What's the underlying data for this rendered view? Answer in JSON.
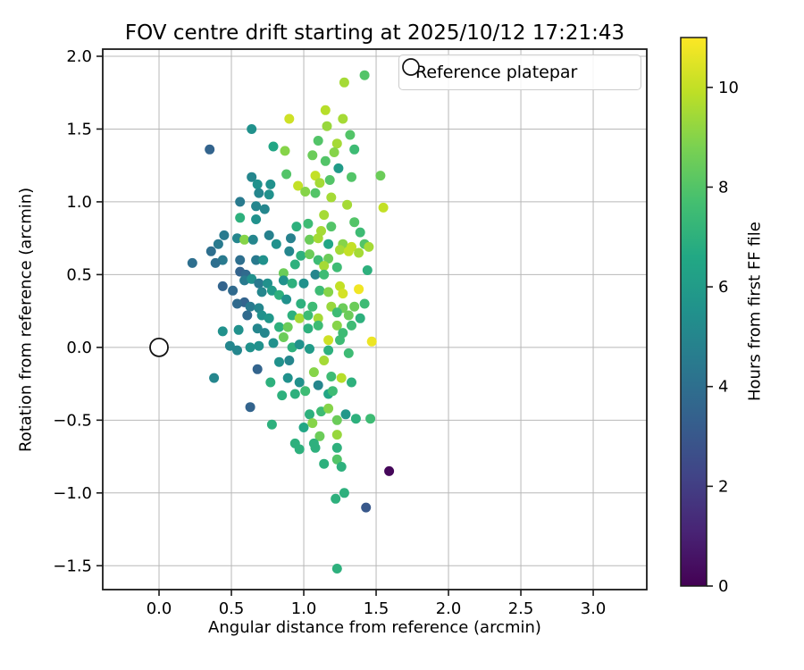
{
  "chart_data": {
    "type": "scatter",
    "title": "FOV centre drift starting at 2025/10/12 17:21:43",
    "xlabel": "Angular distance from reference (arcmin)",
    "ylabel": "Rotation from reference (arcmin)",
    "xlim": [
      -0.389,
      3.37
    ],
    "ylim": [
      -1.664,
      2.049
    ],
    "xticks": [
      0.0,
      0.5,
      1.0,
      1.5,
      2.0,
      2.5,
      3.0
    ],
    "xtick_labels": [
      "0.0",
      "0.5",
      "1.0",
      "1.5",
      "2.0",
      "2.5",
      "3.0"
    ],
    "yticks": [
      2.0,
      1.5,
      1.0,
      0.5,
      0.0,
      -0.5,
      -1.0,
      -1.5
    ],
    "ytick_labels": [
      "2.0",
      "1.5",
      "1.0",
      "0.5",
      "0.0",
      "−0.5",
      "−1.0",
      "−1.5"
    ],
    "grid": true,
    "legend": {
      "label": "Reference platepar",
      "position": "upper right",
      "marker": "open-circle"
    },
    "reference_point": {
      "x": 0.0,
      "y": 0.0
    },
    "colorbar": {
      "label": "Hours from first FF file",
      "min": 0,
      "max": 11,
      "ticks": [
        0,
        2,
        4,
        6,
        8,
        10
      ],
      "tick_labels": [
        "0",
        "2",
        "4",
        "6",
        "8",
        "10"
      ],
      "colormap": "viridis",
      "stops": [
        [
          0,
          "#440154"
        ],
        [
          0.1,
          "#482475"
        ],
        [
          0.2,
          "#414487"
        ],
        [
          0.3,
          "#355f8d"
        ],
        [
          0.4,
          "#2a788e"
        ],
        [
          0.5,
          "#21918c"
        ],
        [
          0.6,
          "#22a884"
        ],
        [
          0.7,
          "#44bf70"
        ],
        [
          0.8,
          "#7ad151"
        ],
        [
          0.9,
          "#bddf26"
        ],
        [
          1,
          "#fde725"
        ]
      ]
    },
    "series_note": "points are [angular_distance_arcmin, rotation_arcmin, hours_from_first_FF_file]",
    "points": [
      [
        1.28,
        1.82,
        9.5
      ],
      [
        1.42,
        1.87,
        8.0
      ],
      [
        1.15,
        1.63,
        9.8
      ],
      [
        1.16,
        1.52,
        9.3
      ],
      [
        0.9,
        1.57,
        10.2
      ],
      [
        0.64,
        1.5,
        5.5
      ],
      [
        0.35,
        1.36,
        3.5
      ],
      [
        1.27,
        1.57,
        9.5
      ],
      [
        1.1,
        1.42,
        8.0
      ],
      [
        1.23,
        1.4,
        9.5
      ],
      [
        1.32,
        1.46,
        8.0
      ],
      [
        1.35,
        1.36,
        7.5
      ],
      [
        1.21,
        1.34,
        9.0
      ],
      [
        0.79,
        1.38,
        6.5
      ],
      [
        0.87,
        1.35,
        9.0
      ],
      [
        1.06,
        1.32,
        8.5
      ],
      [
        1.15,
        1.28,
        8.0
      ],
      [
        1.24,
        1.23,
        6.0
      ],
      [
        0.64,
        1.17,
        5.0
      ],
      [
        0.68,
        1.12,
        5.5
      ],
      [
        0.77,
        1.12,
        5.5
      ],
      [
        0.88,
        1.19,
        8.0
      ],
      [
        1.08,
        1.18,
        10.0
      ],
      [
        1.11,
        1.13,
        9.5
      ],
      [
        1.18,
        1.15,
        8.0
      ],
      [
        1.33,
        1.17,
        8.0
      ],
      [
        1.53,
        1.18,
        8.5
      ],
      [
        0.96,
        1.11,
        10.0
      ],
      [
        0.69,
        1.06,
        5.0
      ],
      [
        0.76,
        1.05,
        5.5
      ],
      [
        1.01,
        1.07,
        9.0
      ],
      [
        1.08,
        1.06,
        8.0
      ],
      [
        1.19,
        1.03,
        9.5
      ],
      [
        1.3,
        0.98,
        9.5
      ],
      [
        1.14,
        0.91,
        9.5
      ],
      [
        1.55,
        0.96,
        10.0
      ],
      [
        0.56,
        1.0,
        4.5
      ],
      [
        0.67,
        0.97,
        5.0
      ],
      [
        0.73,
        0.95,
        5.0
      ],
      [
        0.56,
        0.89,
        7.0
      ],
      [
        0.67,
        0.88,
        5.5
      ],
      [
        0.95,
        0.83,
        7.0
      ],
      [
        1.03,
        0.85,
        7.5
      ],
      [
        1.12,
        0.8,
        9.5
      ],
      [
        1.19,
        0.83,
        8.0
      ],
      [
        1.35,
        0.86,
        8.0
      ],
      [
        1.39,
        0.79,
        7.5
      ],
      [
        0.45,
        0.77,
        4.5
      ],
      [
        0.54,
        0.75,
        5.0
      ],
      [
        0.59,
        0.74,
        9.0
      ],
      [
        0.65,
        0.74,
        5.0
      ],
      [
        0.76,
        0.77,
        4.8
      ],
      [
        0.81,
        0.71,
        5.5
      ],
      [
        0.91,
        0.75,
        4.8
      ],
      [
        1.04,
        0.74,
        8.5
      ],
      [
        1.1,
        0.75,
        9.5
      ],
      [
        1.17,
        0.71,
        6.5
      ],
      [
        1.27,
        0.71,
        9.0
      ],
      [
        1.33,
        0.69,
        10.0
      ],
      [
        1.42,
        0.71,
        8.0
      ],
      [
        1.45,
        0.69,
        9.5
      ],
      [
        0.41,
        0.71,
        4.5
      ],
      [
        0.36,
        0.66,
        4.0
      ],
      [
        0.44,
        0.6,
        4.5
      ],
      [
        0.23,
        0.58,
        4.0
      ],
      [
        0.39,
        0.58,
        4.0
      ],
      [
        0.56,
        0.6,
        4.0
      ],
      [
        0.67,
        0.6,
        4.5
      ],
      [
        0.72,
        0.6,
        5.5
      ],
      [
        0.9,
        0.66,
        5.0
      ],
      [
        0.98,
        0.63,
        7.0
      ],
      [
        1.04,
        0.64,
        8.5
      ],
      [
        1.1,
        0.6,
        7.5
      ],
      [
        1.17,
        0.61,
        8.5
      ],
      [
        1.25,
        0.67,
        9.5
      ],
      [
        1.31,
        0.66,
        10.0
      ],
      [
        1.38,
        0.65,
        9.5
      ],
      [
        0.94,
        0.57,
        7.0
      ],
      [
        1.14,
        0.56,
        9.5
      ],
      [
        1.23,
        0.55,
        7.5
      ],
      [
        0.56,
        0.52,
        3.5
      ],
      [
        0.6,
        0.5,
        3.8
      ],
      [
        0.86,
        0.51,
        8.5
      ],
      [
        1.44,
        0.53,
        7.0
      ],
      [
        0.44,
        0.42,
        3.5
      ],
      [
        0.51,
        0.39,
        3.8
      ],
      [
        0.59,
        0.46,
        4.5
      ],
      [
        0.64,
        0.47,
        5.5
      ],
      [
        0.69,
        0.44,
        4.5
      ],
      [
        0.75,
        0.44,
        5.5
      ],
      [
        0.71,
        0.38,
        5.0
      ],
      [
        0.78,
        0.39,
        6.0
      ],
      [
        0.86,
        0.46,
        5.5
      ],
      [
        0.92,
        0.44,
        7.0
      ],
      [
        1.0,
        0.44,
        5.5
      ],
      [
        1.08,
        0.5,
        5.0
      ],
      [
        1.14,
        0.5,
        7.5
      ],
      [
        1.11,
        0.39,
        7.5
      ],
      [
        1.17,
        0.38,
        9.0
      ],
      [
        1.25,
        0.42,
        10.0
      ],
      [
        1.38,
        0.4,
        10.8
      ],
      [
        1.27,
        0.37,
        10.3
      ],
      [
        0.59,
        0.31,
        3.5
      ],
      [
        0.63,
        0.28,
        4.5
      ],
      [
        0.69,
        0.27,
        5.0
      ],
      [
        0.83,
        0.36,
        7.0
      ],
      [
        0.88,
        0.33,
        5.5
      ],
      [
        0.98,
        0.3,
        7.0
      ],
      [
        1.06,
        0.28,
        7.5
      ],
      [
        1.19,
        0.28,
        9.3
      ],
      [
        1.27,
        0.27,
        8.5
      ],
      [
        1.35,
        0.28,
        8.5
      ],
      [
        1.42,
        0.3,
        7.5
      ],
      [
        0.54,
        0.3,
        3.8
      ],
      [
        0.61,
        0.22,
        3.8
      ],
      [
        0.71,
        0.22,
        5.5
      ],
      [
        0.76,
        0.2,
        5.8
      ],
      [
        0.92,
        0.22,
        7.0
      ],
      [
        0.97,
        0.2,
        9.5
      ],
      [
        1.03,
        0.22,
        7.5
      ],
      [
        1.1,
        0.2,
        9.5
      ],
      [
        1.23,
        0.24,
        7.5
      ],
      [
        1.31,
        0.22,
        8.5
      ],
      [
        1.39,
        0.2,
        7.0
      ],
      [
        0.44,
        0.11,
        5.5
      ],
      [
        0.55,
        0.12,
        5.5
      ],
      [
        0.68,
        0.13,
        5.0
      ],
      [
        0.73,
        0.1,
        5.0
      ],
      [
        0.83,
        0.14,
        7.0
      ],
      [
        0.89,
        0.14,
        8.5
      ],
      [
        1.03,
        0.13,
        7.0
      ],
      [
        1.1,
        0.15,
        7.5
      ],
      [
        1.23,
        0.15,
        9.0
      ],
      [
        1.27,
        0.1,
        7.5
      ],
      [
        1.33,
        0.15,
        7.5
      ],
      [
        0.49,
        0.01,
        5.0
      ],
      [
        0.54,
        -0.02,
        5.0
      ],
      [
        0.63,
        0.0,
        5.5
      ],
      [
        0.69,
        0.01,
        5.5
      ],
      [
        0.79,
        0.03,
        5.5
      ],
      [
        0.86,
        0.07,
        8.5
      ],
      [
        0.92,
        0.0,
        7.0
      ],
      [
        0.97,
        0.02,
        5.5
      ],
      [
        1.04,
        -0.01,
        6.0
      ],
      [
        1.17,
        0.05,
        10.2
      ],
      [
        1.17,
        -0.02,
        7.0
      ],
      [
        1.25,
        0.05,
        7.5
      ],
      [
        1.47,
        0.04,
        10.7
      ],
      [
        1.31,
        -0.04,
        7.5
      ],
      [
        0.83,
        -0.1,
        5.5
      ],
      [
        0.9,
        -0.09,
        5.0
      ],
      [
        0.68,
        -0.15,
        3.5
      ],
      [
        0.38,
        -0.21,
        5.0
      ],
      [
        0.77,
        -0.24,
        7.0
      ],
      [
        0.89,
        -0.21,
        5.5
      ],
      [
        0.97,
        -0.24,
        5.5
      ],
      [
        1.07,
        -0.17,
        9.0
      ],
      [
        1.1,
        -0.26,
        5.0
      ],
      [
        1.14,
        -0.09,
        9.5
      ],
      [
        1.19,
        -0.2,
        7.5
      ],
      [
        1.26,
        -0.21,
        9.8
      ],
      [
        1.33,
        -0.24,
        7.0
      ],
      [
        0.85,
        -0.33,
        7.0
      ],
      [
        0.94,
        -0.32,
        7.0
      ],
      [
        1.01,
        -0.3,
        7.5
      ],
      [
        1.17,
        -0.32,
        6.5
      ],
      [
        1.2,
        -0.3,
        7.5
      ],
      [
        0.63,
        -0.41,
        3.5
      ],
      [
        1.12,
        -0.44,
        7.5
      ],
      [
        1.17,
        -0.42,
        9.0
      ],
      [
        1.04,
        -0.46,
        7.0
      ],
      [
        1.29,
        -0.46,
        5.8
      ],
      [
        1.36,
        -0.49,
        7.0
      ],
      [
        1.46,
        -0.49,
        7.5
      ],
      [
        0.78,
        -0.53,
        7.0
      ],
      [
        1.0,
        -0.55,
        6.5
      ],
      [
        1.06,
        -0.52,
        9.0
      ],
      [
        1.23,
        -0.5,
        8.5
      ],
      [
        1.11,
        -0.61,
        8.5
      ],
      [
        1.23,
        -0.6,
        9.3
      ],
      [
        1.07,
        -0.66,
        7.0
      ],
      [
        0.94,
        -0.66,
        7.0
      ],
      [
        0.97,
        -0.7,
        7.0
      ],
      [
        1.08,
        -0.69,
        7.0
      ],
      [
        1.23,
        -0.69,
        7.0
      ],
      [
        1.14,
        -0.8,
        7.0
      ],
      [
        1.23,
        -0.77,
        8.0
      ],
      [
        1.26,
        -0.82,
        7.0
      ],
      [
        1.59,
        -0.85,
        0.2
      ],
      [
        1.22,
        -1.04,
        7.0
      ],
      [
        1.28,
        -1.0,
        7.0
      ],
      [
        1.43,
        -1.1,
        3.0
      ],
      [
        1.23,
        -1.52,
        7.0
      ]
    ]
  },
  "colors": {
    "grid": "#b8b8b8",
    "spine": "#1a1a1a",
    "tick": "#1a1a1a",
    "text": "#000000",
    "legend_border": "#cccccc",
    "marker_edge": "#111111",
    "background": "#ffffff"
  }
}
